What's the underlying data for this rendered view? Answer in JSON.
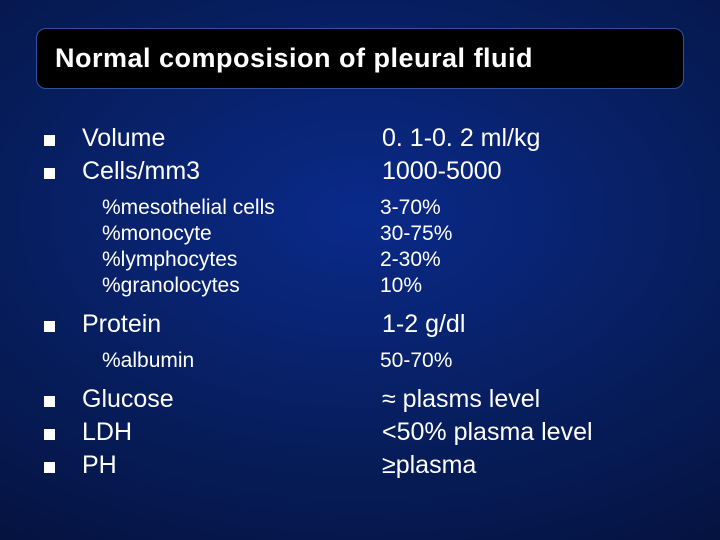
{
  "slide": {
    "title": "Normal composision of pleural fluid",
    "title_fontsize": 27,
    "title_color": "#ffffff",
    "title_bg": "#000000",
    "title_border": "#3050a0",
    "background_gradient": [
      "#0a2a8a",
      "#071e5e",
      "#04103a",
      "#020820"
    ],
    "text_color": "#ffffff",
    "bullet_color": "#ffffff",
    "main_fontsize": 25,
    "sub_fontsize": 21,
    "font_family": "Verdana",
    "rows": [
      {
        "type": "main",
        "label": "Volume",
        "value": "0. 1-0. 2 ml/kg"
      },
      {
        "type": "main",
        "label": "Cells/mm3",
        "value": "1000-5000"
      },
      {
        "type": "gap"
      },
      {
        "type": "sub",
        "label": "%mesothelial cells",
        "value": "3-70%"
      },
      {
        "type": "sub",
        "label": "%monocyte",
        "value": "30-75%"
      },
      {
        "type": "sub",
        "label": "%lymphocytes",
        "value": "2-30%"
      },
      {
        "type": "sub",
        "label": "%granolocytes",
        "value": "10%"
      },
      {
        "type": "gap"
      },
      {
        "type": "main",
        "label": "Protein",
        "value": "1-2 g/dl"
      },
      {
        "type": "gap"
      },
      {
        "type": "sub",
        "label": "%albumin",
        "value": "50-70%"
      },
      {
        "type": "gap"
      },
      {
        "type": "main",
        "label": "Glucose",
        "value": "≈ plasms level"
      },
      {
        "type": "main",
        "label": "LDH",
        "value": "<50% plasma level"
      },
      {
        "type": "main",
        "label": "PH",
        "value": "≥plasma"
      }
    ]
  }
}
